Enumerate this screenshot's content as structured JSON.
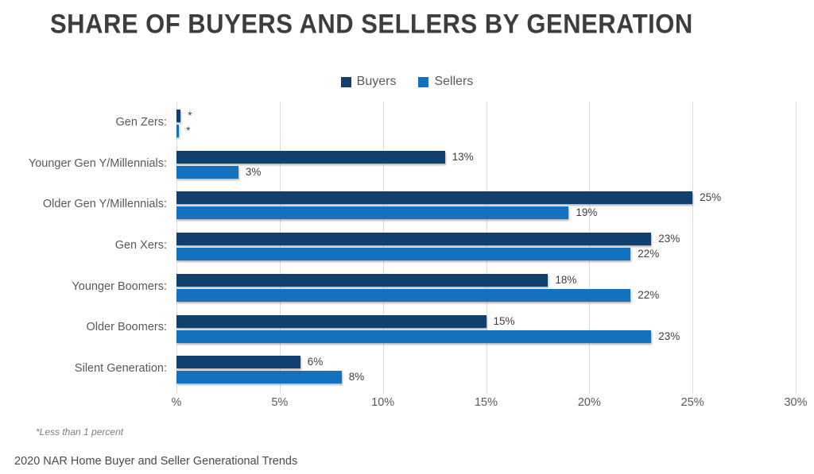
{
  "title": "SHARE OF BUYERS AND SELLERS BY GENERATION",
  "legend": {
    "buyers_label": "Buyers",
    "sellers_label": "Sellers"
  },
  "footnote": "*Less than 1 percent",
  "source": "2020 NAR Home Buyer and Seller Generational Trends",
  "colors": {
    "buyers": "#11406e",
    "sellers": "#1371bd",
    "gridline": "#dcdcdc",
    "axis_text": "#595959",
    "value_text": "#3f3f3f",
    "title_text": "#3d3d3d"
  },
  "chart_data": {
    "type": "bar",
    "orientation": "horizontal",
    "title": "SHARE OF BUYERS AND SELLERS BY GENERATION",
    "categories": [
      "Gen Zers:",
      "Younger Gen Y/Millennials:",
      "Older Gen Y/Millennials:",
      "Gen Xers:",
      "Younger Boomers:",
      "Older Boomers:",
      "Silent Generation:"
    ],
    "series": [
      {
        "name": "Buyers",
        "color": "#11406e",
        "values": [
          0.2,
          13,
          25,
          23,
          18,
          15,
          6
        ],
        "labels": [
          "*",
          "13%",
          "25%",
          "23%",
          "18%",
          "15%",
          "6%"
        ]
      },
      {
        "name": "Sellers",
        "color": "#1371bd",
        "values": [
          0.12,
          3,
          19,
          22,
          22,
          23,
          8
        ],
        "labels": [
          "*",
          "3%",
          "19%",
          "22%",
          "22%",
          "23%",
          "8%"
        ]
      }
    ],
    "xlabel": "",
    "ylabel": "",
    "xlim": [
      0,
      30
    ],
    "x_tick_values": [
      0,
      5,
      10,
      15,
      20,
      25,
      30
    ],
    "x_tick_labels": [
      "%",
      "5%",
      "10%",
      "15%",
      "20%",
      "25%",
      "30%"
    ],
    "grid": "vertical",
    "legend_position": "top-center",
    "footnote": "*Less than 1 percent"
  }
}
